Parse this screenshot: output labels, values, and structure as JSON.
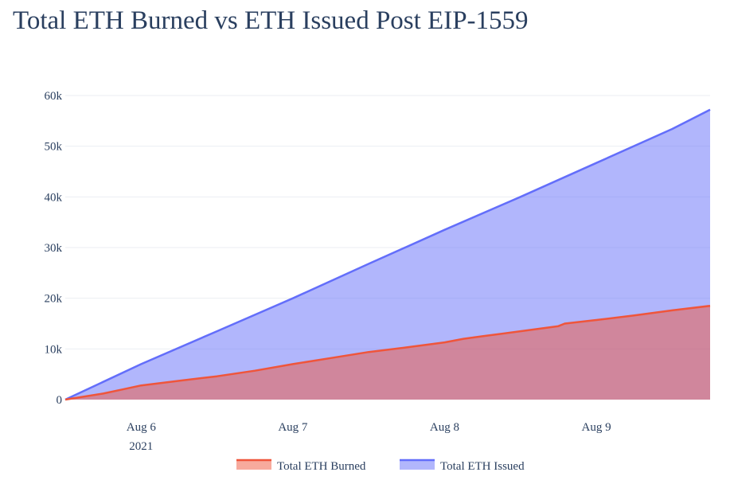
{
  "chart_data": {
    "type": "area",
    "title": "Total ETH Burned vs ETH Issued Post EIP-1559",
    "xlabel": "",
    "ylabel": "",
    "x_ticks": [
      {
        "date": "2021-08-06",
        "label": "Aug 6",
        "sublabel": "2021"
      },
      {
        "date": "2021-08-07",
        "label": "Aug 7",
        "sublabel": ""
      },
      {
        "date": "2021-08-08",
        "label": "Aug 8",
        "sublabel": ""
      },
      {
        "date": "2021-08-09",
        "label": "Aug 9",
        "sublabel": ""
      }
    ],
    "x_range": [
      "2021-08-05 12:00",
      "2021-08-09 18:00"
    ],
    "y_ticks": [
      0,
      10000,
      20000,
      30000,
      40000,
      50000,
      60000
    ],
    "y_tick_labels": [
      "0",
      "10k",
      "20k",
      "30k",
      "40k",
      "50k",
      "60k"
    ],
    "ylim": [
      0,
      60000
    ],
    "grid": true,
    "legend_position": "bottom-center",
    "series": [
      {
        "name": "Total ETH Burned",
        "color": "#ef553b",
        "fill": "rgba(239,85,59,0.5)",
        "x": [
          "2021-08-05 12:00",
          "2021-08-05 18:00",
          "2021-08-05 21:00",
          "2021-08-06 00:00",
          "2021-08-06 06:00",
          "2021-08-06 12:00",
          "2021-08-06 18:00",
          "2021-08-07 00:00",
          "2021-08-07 06:00",
          "2021-08-07 12:00",
          "2021-08-07 18:00",
          "2021-08-08 00:00",
          "2021-08-08 03:00",
          "2021-08-08 06:00",
          "2021-08-08 12:00",
          "2021-08-08 18:00",
          "2021-08-08 19:00",
          "2021-08-09 00:00",
          "2021-08-09 06:00",
          "2021-08-09 12:00",
          "2021-08-09 18:00"
        ],
        "y": [
          0,
          1200,
          2000,
          2800,
          3700,
          4600,
          5700,
          7000,
          8200,
          9400,
          10300,
          11300,
          12000,
          12500,
          13500,
          14500,
          15000,
          15700,
          16600,
          17600,
          18500
        ]
      },
      {
        "name": "Total ETH Issued",
        "color": "#636efa",
        "fill": "rgba(99,110,250,0.5)",
        "x": [
          "2021-08-05 12:00",
          "2021-08-06 00:00",
          "2021-08-06 12:00",
          "2021-08-07 00:00",
          "2021-08-07 12:00",
          "2021-08-08 00:00",
          "2021-08-08 12:00",
          "2021-08-09 00:00",
          "2021-08-09 12:00",
          "2021-08-09 18:00"
        ],
        "y": [
          0,
          7000,
          13500,
          20000,
          26800,
          33500,
          40000,
          46700,
          53400,
          57200
        ]
      }
    ]
  }
}
